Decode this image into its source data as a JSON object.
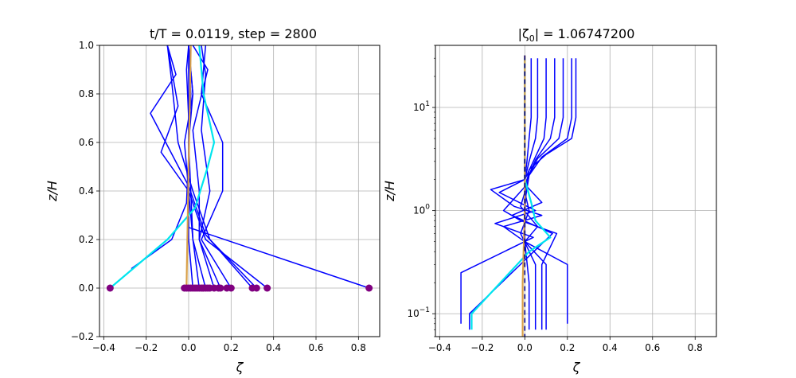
{
  "figure": {
    "background": "#ffffff",
    "grid_color": "#b0b0b0",
    "colors": {
      "profiles": "#0000ff",
      "current": "#00e5ee",
      "mean": "#d8a048",
      "points": "#800080",
      "reference_dash": "#000080"
    }
  },
  "chart_data": [
    {
      "type": "line",
      "title": "t/T = 0.0119, step = 2800",
      "xlabel": "ζ",
      "ylabel": "z/H",
      "xlim": [
        -0.42,
        0.9
      ],
      "ylim": [
        -0.2,
        1.0
      ],
      "xticks": [
        -0.4,
        -0.2,
        0.0,
        0.2,
        0.4,
        0.6,
        0.8
      ],
      "xtick_labels": [
        "−0.4",
        "−0.2",
        "0.0",
        "0.2",
        "0.4",
        "0.6",
        "0.8"
      ],
      "yticks": [
        -0.2,
        0.0,
        0.2,
        0.4,
        0.6,
        0.8,
        1.0
      ],
      "ytick_labels": [
        "−0.2",
        "0.0",
        "0.2",
        "0.4",
        "0.6",
        "0.8",
        "1.0"
      ],
      "grid": true,
      "series": [
        {
          "role": "profile",
          "color": "#0000ff",
          "x": [
            0.85,
            0.0,
            0.0,
            0.0,
            -0.01,
            0.0
          ],
          "y": [
            0.0,
            0.25,
            0.5,
            0.7,
            0.9,
            1.0
          ]
        },
        {
          "role": "profile",
          "color": "#0000ff",
          "x": [
            -0.27,
            -0.08,
            -0.01,
            0.0,
            0.01,
            0.0
          ],
          "y": [
            0.08,
            0.2,
            0.35,
            0.55,
            0.8,
            1.0
          ]
        },
        {
          "role": "profile",
          "color": "#0000ff",
          "x": [
            0.37,
            0.08,
            0.0,
            -0.13,
            -0.05,
            -0.1
          ],
          "y": [
            0.0,
            0.2,
            0.4,
            0.56,
            0.75,
            1.0
          ]
        },
        {
          "role": "profile",
          "color": "#0000ff",
          "x": [
            0.32,
            0.1,
            0.02,
            -0.05,
            -0.08,
            -0.1
          ],
          "y": [
            0.0,
            0.2,
            0.4,
            0.6,
            0.85,
            1.0
          ]
        },
        {
          "role": "profile",
          "color": "#0000ff",
          "x": [
            0.3,
            0.08,
            0.0,
            -0.18,
            -0.06,
            -0.1
          ],
          "y": [
            0.0,
            0.22,
            0.42,
            0.72,
            0.88,
            1.0
          ]
        },
        {
          "role": "profile",
          "color": "#0000ff",
          "x": [
            0.2,
            0.06,
            0.16,
            0.16,
            0.06,
            0.08
          ],
          "y": [
            0.0,
            0.2,
            0.4,
            0.6,
            0.8,
            1.0
          ]
        },
        {
          "role": "profile",
          "color": "#0000ff",
          "x": [
            0.15,
            0.05,
            0.1,
            0.06,
            0.08,
            0.06
          ],
          "y": [
            0.0,
            0.2,
            0.4,
            0.65,
            0.88,
            1.0
          ]
        },
        {
          "role": "profile",
          "color": "#0000ff",
          "x": [
            0.12,
            0.05,
            0.05,
            0.02,
            0.09,
            0.02
          ],
          "y": [
            0.0,
            0.2,
            0.4,
            0.65,
            0.9,
            1.0
          ]
        },
        {
          "role": "profile",
          "color": "#0000ff",
          "x": [
            0.08,
            0.02,
            0.0,
            -0.02,
            0.02,
            0.0
          ],
          "y": [
            0.0,
            0.2,
            0.4,
            0.6,
            0.8,
            1.0
          ]
        },
        {
          "role": "profile",
          "color": "#0000ff",
          "x": [
            0.05,
            0.02,
            0.01,
            0.0,
            0.02,
            0.0
          ],
          "y": [
            0.0,
            0.2,
            0.4,
            0.6,
            0.8,
            1.0
          ]
        },
        {
          "role": "profile",
          "color": "#0000ff",
          "x": [
            0.02,
            0.0,
            0.0,
            0.0,
            0.0,
            0.0
          ],
          "y": [
            0.0,
            0.2,
            0.4,
            0.6,
            0.8,
            1.0
          ]
        },
        {
          "role": "current",
          "color": "#00e5ee",
          "x": [
            -0.37,
            -0.1,
            0.03,
            0.09,
            0.12,
            0.07,
            0.05
          ],
          "y": [
            0.0,
            0.2,
            0.33,
            0.5,
            0.6,
            0.8,
            1.0
          ]
        },
        {
          "role": "mean",
          "color": "#d8a048",
          "x": [
            -0.01,
            0.0,
            0.01
          ],
          "y": [
            0.0,
            0.5,
            1.0
          ]
        }
      ],
      "points": {
        "color": "#800080",
        "x": [
          -0.37,
          -0.02,
          -0.01,
          0.0,
          0.01,
          0.02,
          0.03,
          0.04,
          0.05,
          0.06,
          0.07,
          0.08,
          0.09,
          0.1,
          0.12,
          0.14,
          0.15,
          0.18,
          0.2,
          0.3,
          0.32,
          0.37,
          0.85
        ],
        "y": [
          0.0,
          0.0,
          0.0,
          0.0,
          0.0,
          0.0,
          0.0,
          0.0,
          0.0,
          0.0,
          0.0,
          0.0,
          0.0,
          0.0,
          0.0,
          0.0,
          0.0,
          0.0,
          0.0,
          0.0,
          0.0,
          0.0,
          0.0
        ]
      }
    },
    {
      "type": "line",
      "title": "|ζ₀| = 1.06747200",
      "title_prefix": "|ζ",
      "title_subscript": "0",
      "title_suffix": "| = 1.06747200",
      "xlabel": "ζ",
      "ylabel": "z/H",
      "yscale": "log",
      "xlim": [
        -0.42,
        0.9
      ],
      "ylim": [
        0.06,
        40
      ],
      "xticks": [
        -0.4,
        -0.2,
        0.0,
        0.2,
        0.4,
        0.6,
        0.8
      ],
      "xtick_labels": [
        "−0.4",
        "−0.2",
        "0.0",
        "0.2",
        "0.4",
        "0.6",
        "0.8"
      ],
      "yticks": [
        0.1,
        1,
        10
      ],
      "ytick_base": "10",
      "ytick_exponents": [
        "−1",
        "0",
        "1"
      ],
      "grid": true,
      "series": [
        {
          "role": "profile",
          "color": "#0000ff",
          "x": [
            0.24,
            0.24,
            0.22,
            0.1,
            0.02,
            0.0,
            0.0
          ],
          "y": [
            30,
            8,
            5,
            3.5,
            2.5,
            1.5,
            0.5
          ]
        },
        {
          "role": "profile",
          "color": "#0000ff",
          "x": [
            0.22,
            0.22,
            0.2,
            0.08,
            0.02,
            0.0,
            0.0
          ],
          "y": [
            30,
            8,
            5,
            3.3,
            2.2,
            1.2,
            0.5
          ]
        },
        {
          "role": "profile",
          "color": "#0000ff",
          "x": [
            0.18,
            0.18,
            0.16,
            0.06,
            0.01,
            0.0
          ],
          "y": [
            30,
            8,
            5,
            3.2,
            2.0,
            1.0
          ]
        },
        {
          "role": "profile",
          "color": "#0000ff",
          "x": [
            0.14,
            0.14,
            0.12,
            0.05,
            0.01,
            0.0
          ],
          "y": [
            30,
            8,
            5,
            3.1,
            2.0,
            1.0
          ]
        },
        {
          "role": "profile",
          "color": "#0000ff",
          "x": [
            0.1,
            0.1,
            0.09,
            0.04,
            0.0,
            0.0
          ],
          "y": [
            30,
            8,
            5,
            3.0,
            2.0,
            1.0
          ]
        },
        {
          "role": "profile",
          "color": "#0000ff",
          "x": [
            0.06,
            0.06,
            0.05,
            0.02,
            0.0
          ],
          "y": [
            30,
            8,
            5,
            3.0,
            2.0
          ]
        },
        {
          "role": "profile",
          "color": "#0000ff",
          "x": [
            0.03,
            0.03,
            0.02,
            0.01,
            0.0
          ],
          "y": [
            30,
            8,
            5,
            3.0,
            2.0
          ]
        },
        {
          "role": "profile",
          "color": "#0000ff",
          "x": [
            0.0,
            -0.16,
            -0.05,
            0.08,
            -0.1,
            0.0,
            0.2,
            0.2
          ],
          "y": [
            2.0,
            1.6,
            1.1,
            0.9,
            0.7,
            0.5,
            0.3,
            0.08
          ]
        },
        {
          "role": "profile",
          "color": "#0000ff",
          "x": [
            0.0,
            -0.12,
            0.05,
            -0.14,
            0.04,
            -0.3,
            -0.3
          ],
          "y": [
            2.0,
            1.5,
            1.0,
            0.75,
            0.55,
            0.25,
            0.08
          ]
        },
        {
          "role": "profile",
          "color": "#0000ff",
          "x": [
            0.0,
            0.08,
            -0.06,
            0.13,
            -0.26,
            -0.26
          ],
          "y": [
            1.8,
            1.2,
            0.9,
            0.6,
            0.1,
            0.07
          ]
        },
        {
          "role": "profile",
          "color": "#0000ff",
          "x": [
            0.0,
            -0.1,
            -0.02,
            0.15,
            0.08,
            0.08
          ],
          "y": [
            1.7,
            1.0,
            0.8,
            0.6,
            0.3,
            0.07
          ]
        },
        {
          "role": "profile",
          "color": "#0000ff",
          "x": [
            0.0,
            -0.02,
            0.06,
            0.0,
            0.1,
            0.1
          ],
          "y": [
            1.5,
            1.1,
            0.7,
            0.5,
            0.3,
            0.07
          ]
        },
        {
          "role": "profile",
          "color": "#0000ff",
          "x": [
            0.0,
            0.02,
            -0.02,
            0.05,
            0.05
          ],
          "y": [
            1.5,
            1.0,
            0.6,
            0.3,
            0.07
          ]
        },
        {
          "role": "profile",
          "color": "#0000ff",
          "x": [
            0.0,
            0.0,
            0.02,
            0.02
          ],
          "y": [
            1.0,
            0.5,
            0.2,
            0.07
          ]
        },
        {
          "role": "current",
          "color": "#00e5ee",
          "x": [
            0.0,
            0.0,
            0.03,
            0.05,
            0.12,
            0.02,
            -0.25,
            -0.25
          ],
          "y": [
            30,
            2.0,
            1.2,
            0.8,
            0.55,
            0.4,
            0.1,
            0.07
          ]
        },
        {
          "role": "mean",
          "color": "#d8a048",
          "x": [
            0.0,
            0.0,
            -0.01,
            -0.01
          ],
          "y": [
            32,
            1.0,
            0.2,
            0.06
          ]
        },
        {
          "role": "reference",
          "color": "#000080",
          "dash": true,
          "x": [
            0.0,
            0.0
          ],
          "y": [
            32,
            0.06
          ]
        }
      ]
    }
  ]
}
